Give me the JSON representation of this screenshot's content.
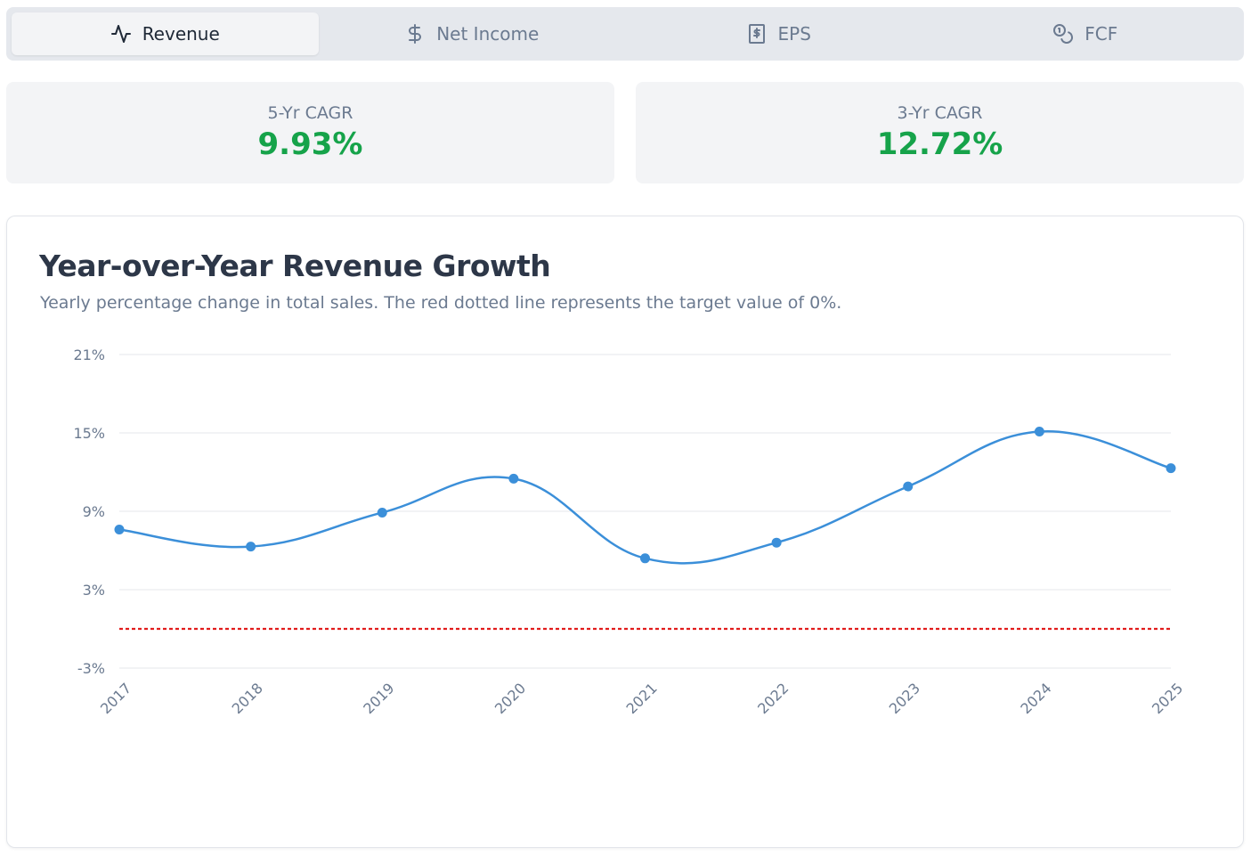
{
  "tabs": [
    {
      "label": "Revenue",
      "icon": "activity-icon",
      "active": true
    },
    {
      "label": "Net Income",
      "icon": "dollar-icon",
      "active": false
    },
    {
      "label": "EPS",
      "icon": "receipt-icon",
      "active": false
    },
    {
      "label": "FCF",
      "icon": "coins-icon",
      "active": false
    }
  ],
  "cards": [
    {
      "label": "5-Yr CAGR",
      "value": "9.93%"
    },
    {
      "label": "3-Yr CAGR",
      "value": "12.72%"
    }
  ],
  "colors": {
    "positive": "#16a34a",
    "line": "#3b8fd9",
    "target": "#e11d1d",
    "grid": "#e5e7eb"
  },
  "chart_data": {
    "type": "line",
    "title": "Year-over-Year Revenue Growth",
    "subtitle": "Yearly percentage change in total sales. The red dotted line represents the target value of 0%.",
    "x": [
      "2017",
      "2018",
      "2019",
      "2020",
      "2021",
      "2022",
      "2023",
      "2024",
      "2025"
    ],
    "series": [
      {
        "values": [
          7.6,
          6.3,
          8.9,
          11.5,
          5.4,
          6.6,
          10.9,
          15.1,
          12.3
        ]
      }
    ],
    "target": 0,
    "ylim": [
      -3,
      21
    ],
    "yticks": [
      21,
      15,
      9,
      3,
      -3
    ],
    "ytick_labels": [
      "21%",
      "15%",
      "9%",
      "3%",
      "-3%"
    ],
    "grid": true,
    "smooth": true
  }
}
